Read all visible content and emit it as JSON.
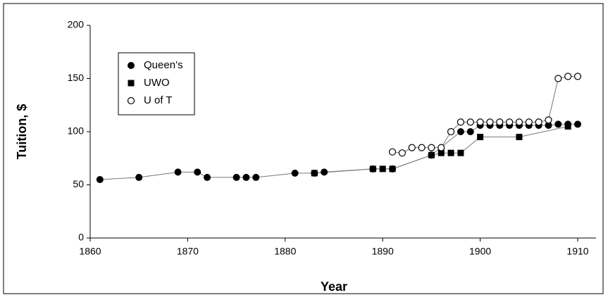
{
  "chart_data": {
    "type": "line",
    "x_label": "Year",
    "y_label": "Tuition, $",
    "xlim": [
      1860,
      1910
    ],
    "xticks": [
      1860,
      1870,
      1880,
      1890,
      1900,
      1910
    ],
    "ylim": [
      0,
      200
    ],
    "yticks": [
      0,
      50,
      100,
      150,
      200
    ],
    "legend": "upper left",
    "series": [
      {
        "name": "Queen’s",
        "color": "#000000",
        "marker": "filled-circle",
        "x": [
          1861,
          1865,
          1869,
          1871,
          1872,
          1875,
          1876,
          1877,
          1881,
          1883,
          1884,
          1889,
          1891,
          1895,
          1898,
          1899,
          1900,
          1901,
          1902,
          1903,
          1904,
          1905,
          1906,
          1907,
          1908,
          1909,
          1910
        ],
        "values": [
          55,
          57,
          62,
          62,
          57,
          57,
          57,
          57,
          61,
          61,
          62,
          65,
          65,
          78,
          100,
          100,
          106,
          106,
          106,
          106,
          106,
          106,
          106,
          106,
          107,
          107,
          107
        ]
      },
      {
        "name": "UWO",
        "color": "#000000",
        "marker": "filled-square",
        "x": [
          1883,
          1889,
          1890,
          1891,
          1895,
          1896,
          1897,
          1898,
          1900,
          1904,
          1909
        ],
        "values": [
          61,
          65,
          65,
          65,
          78,
          80,
          80,
          80,
          95,
          95,
          105
        ]
      },
      {
        "name": "U of T",
        "color": "#000000",
        "marker": "open-circle",
        "x": [
          1891,
          1892,
          1893,
          1894,
          1895,
          1896,
          1897,
          1898,
          1899,
          1900,
          1901,
          1902,
          1903,
          1904,
          1905,
          1906,
          1907,
          1908,
          1909,
          1910
        ],
        "values": [
          81,
          80,
          85,
          85,
          85,
          85,
          100,
          109,
          109,
          109,
          109,
          109,
          109,
          109,
          109,
          109,
          111,
          150,
          152,
          152
        ]
      }
    ]
  }
}
